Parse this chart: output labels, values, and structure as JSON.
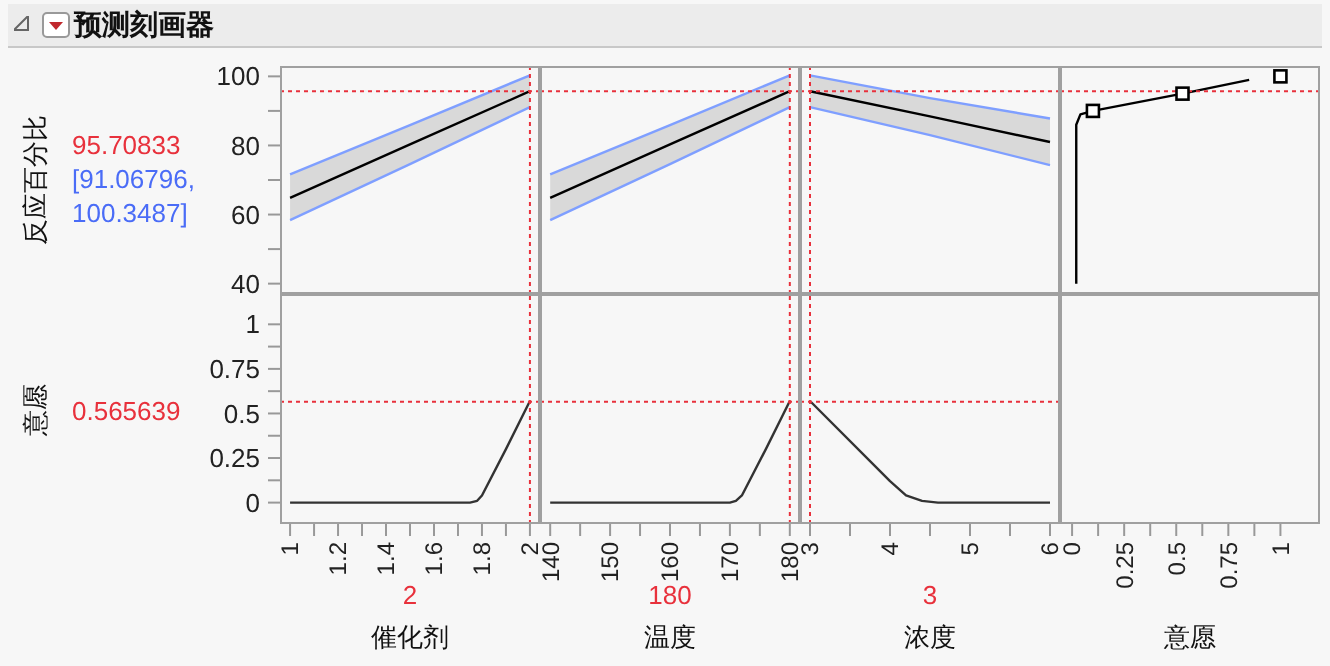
{
  "chart_data": [
    {
      "type": "line",
      "title": "预测刻画器",
      "ylabel": "反应百分比",
      "annotations": [
        "[91.06796, 100.3487]"
      ],
      "xlim": [
        0.958,
        2.042
      ],
      "ylim": [
        37,
        103
      ],
      "yticks": [
        40,
        {
          "value": 50,
          "label": null
        },
        60,
        {
          "value": 70,
          "label": null
        },
        80,
        {
          "value": 90,
          "label": null
        },
        100
      ],
      "tick_labels": "y",
      "marker": "none",
      "series": [
        {
          "color": "#000000",
          "x": [
            1,
            1.5,
            2
          ],
          "values": [
            64.8,
            80.3,
            95.7
          ],
          "lower": [
            58.4,
            74.6,
            91.1
          ],
          "upper": [
            71.6,
            85.9,
            100.3
          ]
        },
        {
          "color": "#7f9fff",
          "x": [
            1,
            1.5,
            2
          ],
          "values": [
            58.4,
            74.6,
            91.1
          ]
        },
        {
          "color": "#7f9fff",
          "x": [
            1,
            1.5,
            2
          ],
          "values": [
            71.6,
            85.9,
            100.3
          ]
        }
      ],
      "ref_lines": [
        {
          "axis": "y",
          "value": 95.70833,
          "label": "95.70833",
          "color": "#e8313c",
          "line_style": "dotted"
        },
        {
          "axis": "x",
          "value": 2,
          "color": "#e8313c",
          "line_style": "dotted"
        }
      ]
    },
    {
      "type": "line",
      "xlim": [
        138.3,
        181.7
      ],
      "ylim": [
        37,
        103
      ],
      "tick_labels": false,
      "marker": "none",
      "series": [
        {
          "color": "#000000",
          "x": [
            140,
            160,
            180
          ],
          "values": [
            64.8,
            80.3,
            95.7
          ],
          "lower": [
            58.4,
            74.6,
            91.1
          ],
          "upper": [
            71.6,
            85.9,
            100.3
          ]
        },
        {
          "color": "#7f9fff",
          "x": [
            140,
            160,
            180
          ],
          "values": [
            58.4,
            74.6,
            91.1
          ]
        },
        {
          "color": "#7f9fff",
          "x": [
            140,
            160,
            180
          ],
          "values": [
            71.6,
            85.9,
            100.3
          ]
        }
      ],
      "ref_lines": [
        {
          "axis": "y",
          "value": 95.70833,
          "color": "#e8313c",
          "line_style": "dotted"
        },
        {
          "axis": "x",
          "value": 180,
          "color": "#e8313c",
          "line_style": "dotted"
        }
      ]
    },
    {
      "type": "line",
      "xlim": [
        2.875,
        6.125
      ],
      "ylim": [
        37,
        103
      ],
      "tick_labels": false,
      "marker": "none",
      "series": [
        {
          "color": "#000000",
          "x": [
            3,
            4.5,
            6
          ],
          "values": [
            95.7,
            88.4,
            81
          ],
          "lower": [
            91.1,
            83,
            74.3
          ],
          "upper": [
            100.3,
            93.7,
            87.8
          ]
        },
        {
          "color": "#7f9fff",
          "x": [
            3,
            4.5,
            6
          ],
          "values": [
            91.1,
            83,
            74.3
          ]
        },
        {
          "color": "#7f9fff",
          "x": [
            3,
            4.5,
            6
          ],
          "values": [
            100.3,
            93.7,
            87.8
          ]
        }
      ],
      "ref_lines": [
        {
          "axis": "y",
          "value": 95.70833,
          "color": "#e8313c",
          "line_style": "dotted"
        },
        {
          "axis": "x",
          "value": 3,
          "color": "#e8313c",
          "line_style": "dotted"
        }
      ]
    },
    {
      "type": "line",
      "xlim": [
        -0.058,
        1.19
      ],
      "ylim": [
        37,
        103
      ],
      "tick_labels": false,
      "marker": "none",
      "series": [
        {
          "color": "#000000",
          "x": [
            0.02,
            0.02,
            0.04,
            0.1,
            0.53,
            0.85
          ],
          "values": [
            40,
            86,
            89,
            90,
            95,
            99
          ]
        },
        {
          "type": "scatter",
          "marker": "square",
          "color": "#000000",
          "x": [
            0.1,
            0.53,
            1
          ],
          "values": [
            90,
            95,
            100
          ]
        }
      ],
      "ref_lines": [
        {
          "axis": "y",
          "value": 95.70833,
          "color": "#e8313c",
          "line_style": "dotted"
        }
      ]
    },
    {
      "type": "line",
      "ylabel": "意愿",
      "xlabel": "催化剂",
      "xlim": [
        0.958,
        2.042
      ],
      "xticks": [
        1,
        {
          "value": 1.1,
          "label": null
        },
        1.2,
        {
          "value": 1.3,
          "label": null
        },
        1.4,
        {
          "value": 1.5,
          "label": null
        },
        1.6,
        {
          "value": 1.7,
          "label": null
        },
        1.8,
        {
          "value": 1.9,
          "label": null
        },
        2
      ],
      "ylim": [
        -0.12,
        1.17
      ],
      "yticks": [
        0,
        {
          "value": 0.125,
          "label": null
        },
        0.25,
        {
          "value": 0.375,
          "label": null
        },
        0.5,
        {
          "value": 0.625,
          "label": null
        },
        0.75,
        {
          "value": 0.875,
          "label": null
        },
        1
      ],
      "marker": "none",
      "series": [
        {
          "color": "#333333",
          "x": [
            1,
            1.75,
            1.78,
            1.8,
            1.9,
            2
          ],
          "values": [
            0,
            0,
            0.01,
            0.04,
            0.3,
            0.57
          ]
        }
      ],
      "ref_lines": [
        {
          "axis": "y",
          "value": 0.565639,
          "label": "0.565639",
          "color": "#e8313c",
          "line_style": "dotted"
        },
        {
          "axis": "x",
          "value": 2,
          "label": "2",
          "color": "#e8313c",
          "line_style": "dotted"
        }
      ]
    },
    {
      "type": "line",
      "xlabel": "温度",
      "xlim": [
        138.3,
        181.7
      ],
      "xticks": [
        140,
        {
          "value": 145,
          "label": null
        },
        150,
        {
          "value": 155,
          "label": null
        },
        160,
        {
          "value": 165,
          "label": null
        },
        170,
        {
          "value": 175,
          "label": null
        },
        180
      ],
      "ylim": [
        -0.12,
        1.17
      ],
      "tick_labels": "x",
      "marker": "none",
      "series": [
        {
          "color": "#333333",
          "x": [
            140,
            170,
            171,
            172,
            176,
            180
          ],
          "values": [
            0,
            0,
            0.01,
            0.04,
            0.3,
            0.57
          ]
        }
      ],
      "ref_lines": [
        {
          "axis": "y",
          "value": 0.565639,
          "color": "#e8313c",
          "line_style": "dotted"
        },
        {
          "axis": "x",
          "value": 180,
          "label": "180",
          "color": "#e8313c",
          "line_style": "dotted"
        }
      ]
    },
    {
      "type": "line",
      "xlabel": "浓度",
      "xlim": [
        2.875,
        6.125
      ],
      "xticks": [
        3,
        {
          "value": 3.5,
          "label": null
        },
        4,
        {
          "value": 4.5,
          "label": null
        },
        5,
        {
          "value": 5.5,
          "label": null
        },
        6
      ],
      "ylim": [
        -0.12,
        1.17
      ],
      "tick_labels": "x",
      "marker": "none",
      "series": [
        {
          "color": "#333333",
          "x": [
            3,
            4,
            4.2,
            4.4,
            4.6,
            6
          ],
          "values": [
            0.57,
            0.12,
            0.04,
            0.01,
            0,
            0
          ]
        }
      ],
      "ref_lines": [
        {
          "axis": "y",
          "value": 0.565639,
          "color": "#e8313c",
          "line_style": "dotted"
        },
        {
          "axis": "x",
          "value": 3,
          "label": "3",
          "color": "#e8313c",
          "line_style": "dotted"
        }
      ]
    },
    {
      "type": "line",
      "xlabel": "意愿",
      "xlim": [
        -0.058,
        1.19
      ],
      "xticks": [
        0,
        {
          "value": 0.125,
          "label": null
        },
        0.25,
        {
          "value": 0.375,
          "label": null
        },
        0.5,
        {
          "value": 0.625,
          "label": null
        },
        0.75,
        {
          "value": 0.875,
          "label": null
        },
        1
      ],
      "ylim": [
        -0.12,
        1.17
      ],
      "tick_labels": "x"
    }
  ]
}
